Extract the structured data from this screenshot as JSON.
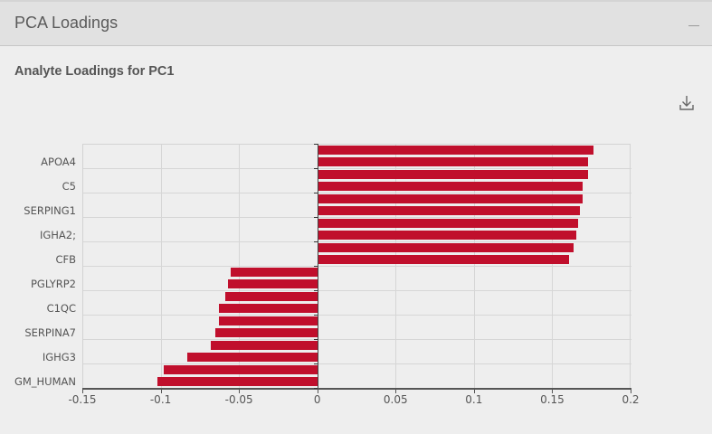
{
  "panel": {
    "title": "PCA Loadings",
    "collapse_icon": "minus-icon",
    "collapse_label": "Collapse panel"
  },
  "chart_section": {
    "subtitle": "Analyte Loadings for PC1",
    "download_icon": "download-icon"
  },
  "colors": {
    "bar": "#c00f2c",
    "header_bg": "#e1e1e1",
    "body_bg": "#eeeeee",
    "grid": "#d6d6d6"
  },
  "chart_data": {
    "type": "bar",
    "orientation": "horizontal",
    "title": "Analyte Loadings for PC1",
    "xlabel": "",
    "ylabel": "",
    "xlim": [
      -0.15,
      0.2
    ],
    "x_ticks": [
      "-0.15",
      "-0.1",
      "-0.05",
      "0",
      "0.05",
      "0.1",
      "0.15",
      "0.2"
    ],
    "grid": true,
    "legend": null,
    "visible_category_labels": [
      "APOA4",
      "C5",
      "SERPING1",
      "IGHA2;",
      "CFB",
      "PGLYRP2",
      "C1QC",
      "SERPINA7",
      "IGHG3",
      "GM_HUMAN"
    ],
    "categories": [
      "",
      "APOA4",
      "",
      "C5",
      "",
      "SERPING1",
      "",
      "IGHA2;",
      "",
      "CFB",
      "",
      "PGLYRP2",
      "",
      "C1QC",
      "",
      "SERPINA7",
      "",
      "IGHG3",
      "",
      "GM_HUMAN"
    ],
    "values": [
      0.176,
      0.172,
      0.172,
      0.169,
      0.169,
      0.167,
      0.166,
      0.165,
      0.163,
      0.16,
      -0.055,
      -0.057,
      -0.059,
      -0.063,
      -0.063,
      -0.065,
      -0.068,
      -0.083,
      -0.098,
      -0.102
    ]
  }
}
